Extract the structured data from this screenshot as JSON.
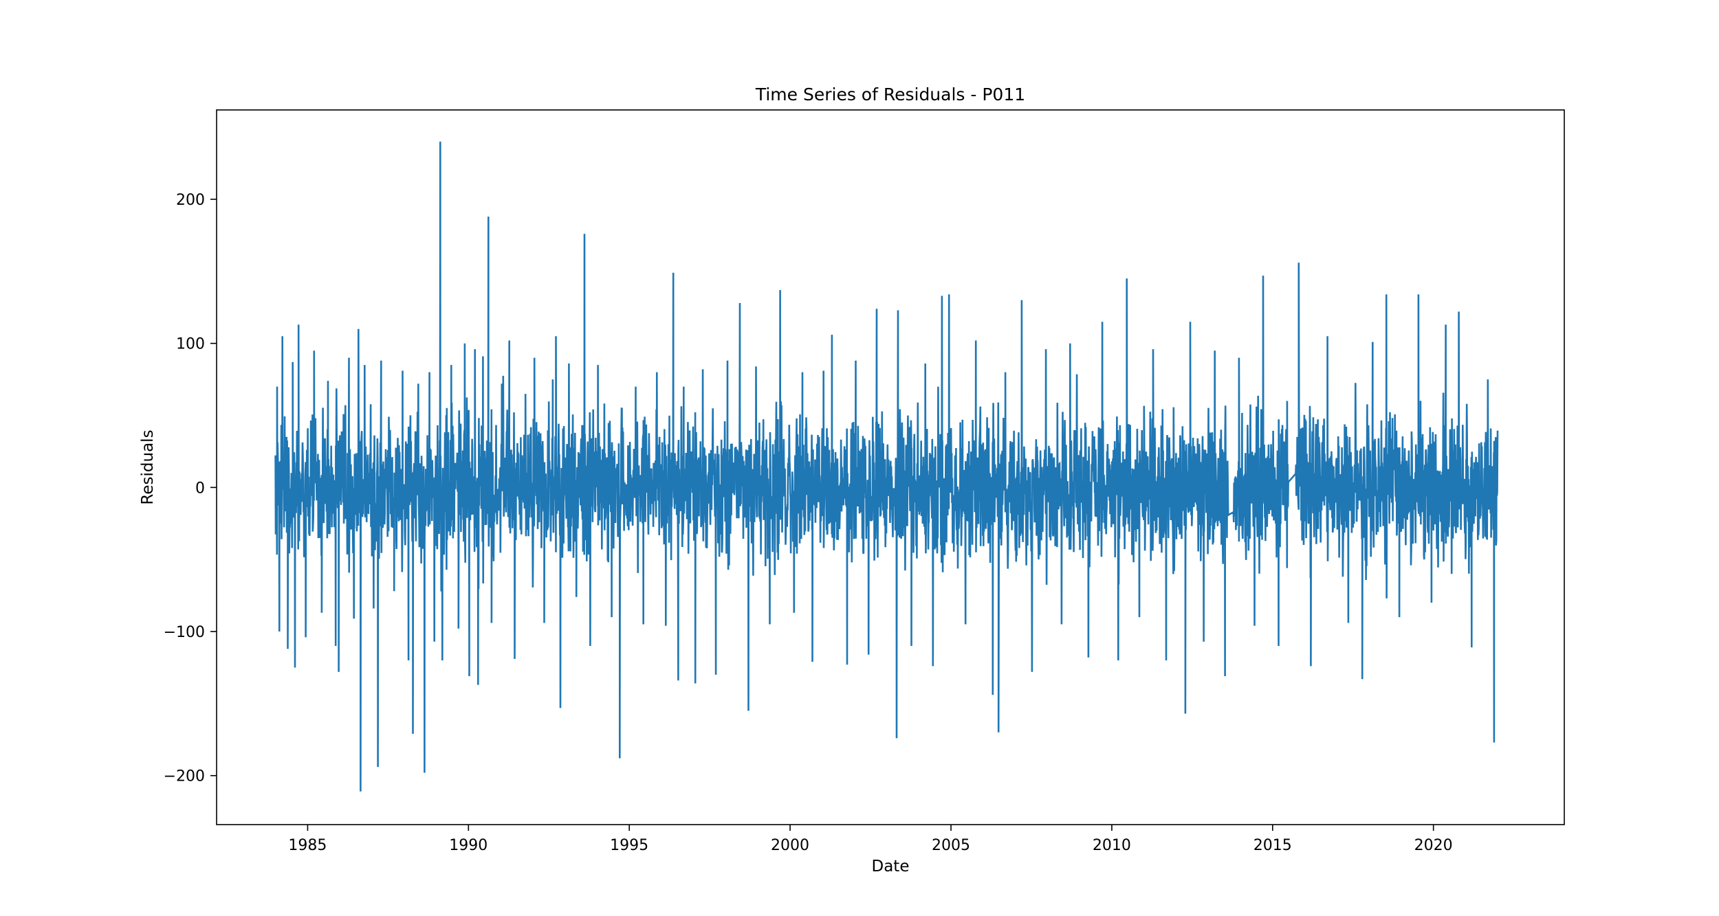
{
  "chart_data": {
    "type": "line",
    "title": "Time Series of Residuals - P011",
    "xlabel": "Date",
    "ylabel": "Residuals",
    "xlim": [
      "1982-03-04",
      "2024-01-26"
    ],
    "ylim": [
      -234,
      262
    ],
    "x_ticks": [
      "1985",
      "1990",
      "1995",
      "2000",
      "2005",
      "2010",
      "2015",
      "2020"
    ],
    "y_ticks": [
      200,
      100,
      0,
      -100,
      -200
    ],
    "y_tick_labels": [
      "200",
      "100",
      "0",
      "−100",
      "−200"
    ],
    "grid": false,
    "legend": "none",
    "series_color": "#1f77b4",
    "series": [
      {
        "x": [
          "1984-01-01",
          "2021-12-31"
        ],
        "y": [
          0,
          0
        ],
        "points": [
          {
            "date": "1984-01-20",
            "value": 70
          },
          {
            "date": "1984-02-15",
            "value": -100
          },
          {
            "date": "1984-03-20",
            "value": 105
          },
          {
            "date": "1984-05-20",
            "value": -112
          },
          {
            "date": "1984-07-15",
            "value": 87
          },
          {
            "date": "1984-08-10",
            "value": -125
          },
          {
            "date": "1984-09-20",
            "value": 113
          },
          {
            "date": "1984-12-10",
            "value": -104
          },
          {
            "date": "1985-03-15",
            "value": 95
          },
          {
            "date": "1985-06-10",
            "value": -87
          },
          {
            "date": "1985-08-20",
            "value": 74
          },
          {
            "date": "1985-11-15",
            "value": -110
          },
          {
            "date": "1985-12-20",
            "value": -128
          },
          {
            "date": "1986-04-15",
            "value": 90
          },
          {
            "date": "1986-06-10",
            "value": -91
          },
          {
            "date": "1986-08-01",
            "value": 110
          },
          {
            "date": "1986-08-25",
            "value": -211
          },
          {
            "date": "1986-10-10",
            "value": 85
          },
          {
            "date": "1987-01-20",
            "value": -84
          },
          {
            "date": "1987-03-10",
            "value": -194
          },
          {
            "date": "1987-04-15",
            "value": 88
          },
          {
            "date": "1987-09-10",
            "value": -72
          },
          {
            "date": "1987-12-15",
            "value": 81
          },
          {
            "date": "1988-02-20",
            "value": -120
          },
          {
            "date": "1988-04-10",
            "value": -171
          },
          {
            "date": "1988-06-10",
            "value": 72
          },
          {
            "date": "1988-08-20",
            "value": -198
          },
          {
            "date": "1988-10-15",
            "value": 80
          },
          {
            "date": "1988-12-10",
            "value": -107
          },
          {
            "date": "1989-02-15",
            "value": 240
          },
          {
            "date": "1989-03-10",
            "value": -120
          },
          {
            "date": "1989-06-20",
            "value": 85
          },
          {
            "date": "1989-09-10",
            "value": -98
          },
          {
            "date": "1989-11-20",
            "value": 100
          },
          {
            "date": "1990-01-10",
            "value": -131
          },
          {
            "date": "1990-03-15",
            "value": 96
          },
          {
            "date": "1990-04-20",
            "value": -137
          },
          {
            "date": "1990-06-15",
            "value": 91
          },
          {
            "date": "1990-08-15",
            "value": 188
          },
          {
            "date": "1990-09-20",
            "value": -94
          },
          {
            "date": "1991-01-15",
            "value": 72
          },
          {
            "date": "1991-04-10",
            "value": 102
          },
          {
            "date": "1991-06-10",
            "value": -119
          },
          {
            "date": "1991-10-10",
            "value": 65
          },
          {
            "date": "1992-01-20",
            "value": 90
          },
          {
            "date": "1992-05-10",
            "value": -94
          },
          {
            "date": "1992-08-15",
            "value": 75
          },
          {
            "date": "1992-09-20",
            "value": 105
          },
          {
            "date": "1992-11-10",
            "value": -153
          },
          {
            "date": "1993-02-15",
            "value": 86
          },
          {
            "date": "1993-05-10",
            "value": -76
          },
          {
            "date": "1993-08-10",
            "value": 176
          },
          {
            "date": "1993-10-15",
            "value": -110
          },
          {
            "date": "1994-01-10",
            "value": 85
          },
          {
            "date": "1994-06-15",
            "value": -90
          },
          {
            "date": "1994-09-15",
            "value": -188
          },
          {
            "date": "1994-10-10",
            "value": 55
          },
          {
            "date": "1995-03-15",
            "value": 70
          },
          {
            "date": "1995-06-10",
            "value": -95
          },
          {
            "date": "1995-11-10",
            "value": 80
          },
          {
            "date": "1996-02-20",
            "value": -96
          },
          {
            "date": "1996-05-15",
            "value": 149
          },
          {
            "date": "1996-07-10",
            "value": -134
          },
          {
            "date": "1996-09-10",
            "value": 70
          },
          {
            "date": "1997-01-20",
            "value": -136
          },
          {
            "date": "1997-04-15",
            "value": 82
          },
          {
            "date": "1997-09-10",
            "value": -130
          },
          {
            "date": "1998-01-20",
            "value": 88
          },
          {
            "date": "1998-06-10",
            "value": 128
          },
          {
            "date": "1998-09-15",
            "value": -155
          },
          {
            "date": "1998-12-10",
            "value": 84
          },
          {
            "date": "1999-05-15",
            "value": -95
          },
          {
            "date": "1999-09-10",
            "value": 137
          },
          {
            "date": "2000-02-15",
            "value": -87
          },
          {
            "date": "2000-05-20",
            "value": 80
          },
          {
            "date": "2000-09-10",
            "value": -121
          },
          {
            "date": "2001-01-15",
            "value": 81
          },
          {
            "date": "2001-04-20",
            "value": 106
          },
          {
            "date": "2001-10-10",
            "value": -123
          },
          {
            "date": "2002-01-15",
            "value": 88
          },
          {
            "date": "2002-06-10",
            "value": -116
          },
          {
            "date": "2002-09-10",
            "value": 124
          },
          {
            "date": "2003-04-25",
            "value": -174
          },
          {
            "date": "2003-05-10",
            "value": 123
          },
          {
            "date": "2003-10-10",
            "value": -110
          },
          {
            "date": "2004-03-15",
            "value": 86
          },
          {
            "date": "2004-06-10",
            "value": -124
          },
          {
            "date": "2004-09-20",
            "value": 133
          },
          {
            "date": "2004-12-10",
            "value": 134
          },
          {
            "date": "2005-06-15",
            "value": -95
          },
          {
            "date": "2005-10-10",
            "value": 102
          },
          {
            "date": "2006-04-20",
            "value": -144
          },
          {
            "date": "2006-06-25",
            "value": -170
          },
          {
            "date": "2006-09-10",
            "value": 80
          },
          {
            "date": "2007-03-15",
            "value": 130
          },
          {
            "date": "2007-07-10",
            "value": -128
          },
          {
            "date": "2007-12-15",
            "value": 96
          },
          {
            "date": "2008-06-10",
            "value": -95
          },
          {
            "date": "2008-09-15",
            "value": 100
          },
          {
            "date": "2009-04-10",
            "value": -118
          },
          {
            "date": "2009-09-15",
            "value": 115
          },
          {
            "date": "2010-03-15",
            "value": -120
          },
          {
            "date": "2010-06-20",
            "value": 145
          },
          {
            "date": "2010-11-10",
            "value": -90
          },
          {
            "date": "2011-04-15",
            "value": 96
          },
          {
            "date": "2011-09-10",
            "value": -120
          },
          {
            "date": "2012-04-15",
            "value": -157
          },
          {
            "date": "2012-06-10",
            "value": 115
          },
          {
            "date": "2012-11-10",
            "value": -107
          },
          {
            "date": "2013-03-15",
            "value": 95
          },
          {
            "date": "2013-07-10",
            "value": -131
          },
          {
            "date": "2013-12-15",
            "value": 90
          },
          {
            "date": "2014-06-10",
            "value": -96
          },
          {
            "date": "2014-09-15",
            "value": 147
          },
          {
            "date": "2015-03-10",
            "value": -110
          },
          {
            "date": "2015-06-15",
            "value": 60
          },
          {
            "date": "2015-10-25",
            "value": 156
          },
          {
            "date": "2016-03-10",
            "value": -124
          },
          {
            "date": "2016-09-15",
            "value": 105
          },
          {
            "date": "2017-05-10",
            "value": -94
          },
          {
            "date": "2017-10-15",
            "value": -133
          },
          {
            "date": "2018-02-10",
            "value": 101
          },
          {
            "date": "2018-07-15",
            "value": 134
          },
          {
            "date": "2018-12-10",
            "value": -90
          },
          {
            "date": "2019-07-15",
            "value": 134
          },
          {
            "date": "2019-12-10",
            "value": -80
          },
          {
            "date": "2020-05-20",
            "value": 113
          },
          {
            "date": "2020-10-15",
            "value": 122
          },
          {
            "date": "2021-03-10",
            "value": -111
          },
          {
            "date": "2021-09-10",
            "value": 75
          },
          {
            "date": "2021-11-20",
            "value": -177
          },
          {
            "date": "2021-12-20",
            "value": 32
          }
        ]
      }
    ]
  }
}
